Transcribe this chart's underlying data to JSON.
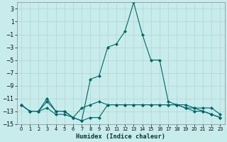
{
  "xlabel": "Humidex (Indice chaleur)",
  "bg_color": "#c8ecec",
  "grid_color": "#b0d4d4",
  "line_color": "#006666",
  "x": [
    0,
    1,
    2,
    3,
    4,
    5,
    6,
    7,
    8,
    9,
    10,
    11,
    12,
    13,
    14,
    15,
    16,
    17,
    18,
    19,
    20,
    21,
    22,
    23
  ],
  "series1": [
    -12,
    -13,
    -13,
    -11,
    -13,
    -13,
    -14,
    -14.5,
    -8,
    -7.5,
    -3,
    -2.5,
    -0.5,
    4,
    -1,
    -5,
    -5,
    -11.5,
    -12,
    -12,
    -12.5,
    -13,
    -13.5,
    -14
  ],
  "series2": [
    -12,
    -13,
    -13,
    -11.5,
    -13,
    -13,
    -14,
    -12.5,
    -12,
    -11.5,
    -12,
    -12,
    -12,
    -12,
    -12,
    -12,
    -12,
    -12,
    -12,
    -12.5,
    -12.5,
    -12.5,
    -12.5,
    -13.5
  ],
  "series3": [
    -12,
    -13,
    -13,
    -12.5,
    -13.5,
    -13.5,
    -14,
    -14.5,
    -14,
    -14,
    -12,
    -12,
    -12,
    -12,
    -12,
    -12,
    -12,
    -12,
    -12,
    -12.5,
    -13,
    -13,
    -13.5,
    -14
  ],
  "ylim": [
    -15,
    4
  ],
  "yticks": [
    3,
    1,
    -1,
    -3,
    -5,
    -7,
    -9,
    -11,
    -13,
    -15
  ],
  "xticks": [
    0,
    1,
    2,
    3,
    4,
    5,
    6,
    7,
    8,
    9,
    10,
    11,
    12,
    13,
    14,
    15,
    16,
    17,
    18,
    19,
    20,
    21,
    22,
    23
  ]
}
